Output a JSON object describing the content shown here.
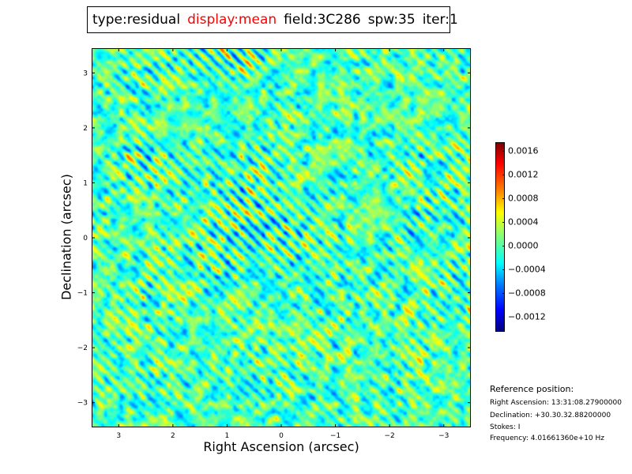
{
  "title": {
    "items": [
      {
        "text": "type:residual",
        "color": "#000000"
      },
      {
        "text": "display:mean",
        "color": "#ff0000"
      },
      {
        "text": "field:3C286",
        "color": "#000000"
      },
      {
        "text": "spw:35",
        "color": "#000000"
      },
      {
        "text": "iter:1",
        "color": "#000000"
      }
    ]
  },
  "chart_data": {
    "type": "heatmap",
    "colormap": "jet",
    "xlabel": "Right Ascension (arcsec)",
    "ylabel": "Declination (arcsec)",
    "xlim": [
      3.5,
      -3.5
    ],
    "ylim": [
      -3.45,
      3.45
    ],
    "x_ticks": [
      3,
      2,
      1,
      0,
      -1,
      -2,
      -3
    ],
    "x_tick_labels": [
      "3",
      "2",
      "1",
      "0",
      "−1",
      "−2",
      "−3"
    ],
    "y_ticks": [
      3,
      2,
      1,
      0,
      -1,
      -2,
      -3
    ],
    "y_tick_labels": [
      "3",
      "2",
      "1",
      "0",
      "−1",
      "−2",
      "−3"
    ],
    "colorbar": {
      "vmin": -0.00145,
      "vmax": 0.00175,
      "ticks": [
        0.0016,
        0.0012,
        0.0008,
        0.0004,
        0.0,
        -0.0004,
        -0.0008,
        -0.0012
      ],
      "tick_labels": [
        "0.0016",
        "0.0012",
        "0.0008",
        "0.0004",
        "0.0000",
        "−0.0004",
        "−0.0008",
        "−0.0012"
      ]
    }
  },
  "reference": {
    "title": "Reference position:",
    "lines": [
      "Right Ascension: 13:31:08.27900000",
      "Declination: +30.30.32.88200000",
      "Stokes: I",
      "Frequency: 4.01661360e+10 Hz"
    ]
  }
}
